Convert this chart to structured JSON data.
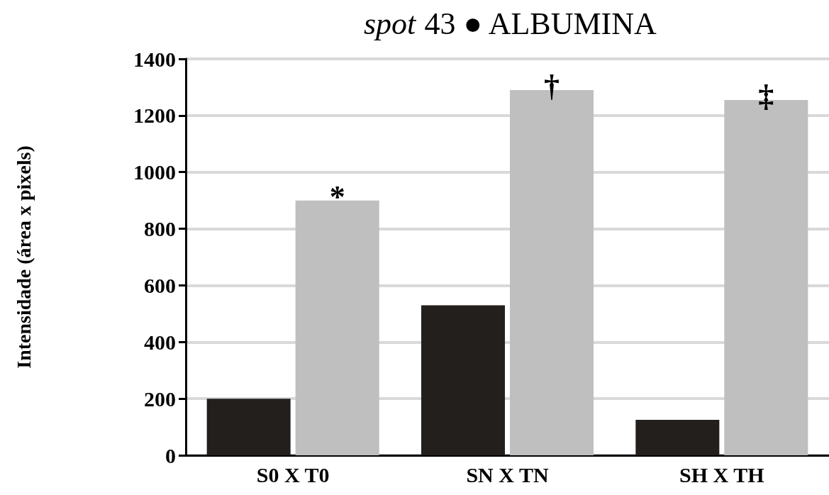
{
  "chart_data": {
    "type": "bar",
    "title": "spot 43 ● ALBUMINA",
    "ylabel": "Intensidade (área x pixels)",
    "categories": [
      "S0 X T0",
      "SN X TN",
      "SH X TH"
    ],
    "series": [
      {
        "color": "#231f1c",
        "values": [
          200,
          530,
          125
        ]
      },
      {
        "color": "#bfbfbf",
        "values": [
          900,
          1290,
          1255
        ]
      }
    ],
    "ylim": [
      0,
      1400
    ],
    "yticks": [
      0,
      200,
      400,
      600,
      800,
      1000,
      1200,
      1400
    ],
    "grid": "y",
    "annotations": [
      {
        "text": "*",
        "x": "S0 X T0",
        "y": 900
      },
      {
        "text": "†",
        "x": "SN X TN",
        "y": 1290
      },
      {
        "text": "‡",
        "x": "SH X TH",
        "y": 1255
      }
    ]
  }
}
